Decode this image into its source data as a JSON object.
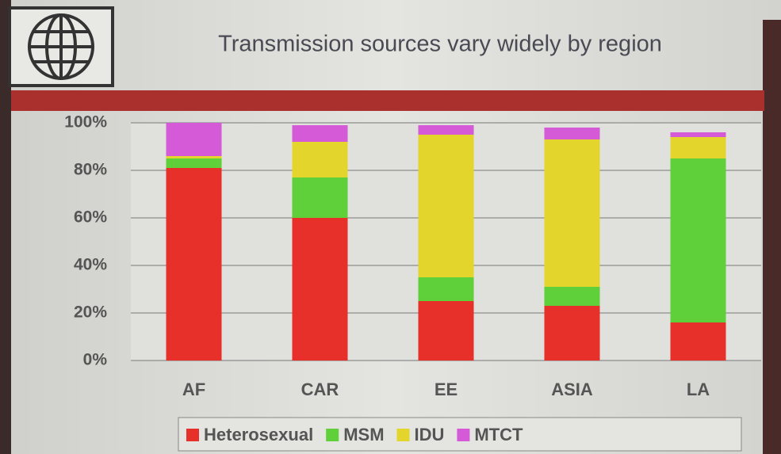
{
  "chart_data": {
    "type": "stacked_bar",
    "title": "Transmission sources vary widely by region",
    "categories": [
      "AF",
      "CAR",
      "EE",
      "ASIA",
      "LA"
    ],
    "series": [
      {
        "name": "Heterosexual",
        "color": "#e8302a",
        "values": [
          81,
          60,
          25,
          23,
          16
        ]
      },
      {
        "name": "MSM",
        "color": "#5fd03a",
        "values": [
          4,
          17,
          10,
          8,
          69
        ]
      },
      {
        "name": "IDU",
        "color": "#e3d52c",
        "values": [
          1,
          15,
          60,
          62,
          9
        ]
      },
      {
        "name": "MTCT",
        "color": "#d45ad8",
        "values": [
          14,
          7,
          4,
          5,
          2
        ]
      }
    ],
    "ylim": [
      0,
      100
    ],
    "yticks": [
      {
        "value": 0,
        "label": "0%"
      },
      {
        "value": 20,
        "label": "20%"
      },
      {
        "value": 40,
        "label": "40%"
      },
      {
        "value": 60,
        "label": "60%"
      },
      {
        "value": 80,
        "label": "80%"
      },
      {
        "value": 100,
        "label": "100%"
      }
    ],
    "grid": true
  }
}
